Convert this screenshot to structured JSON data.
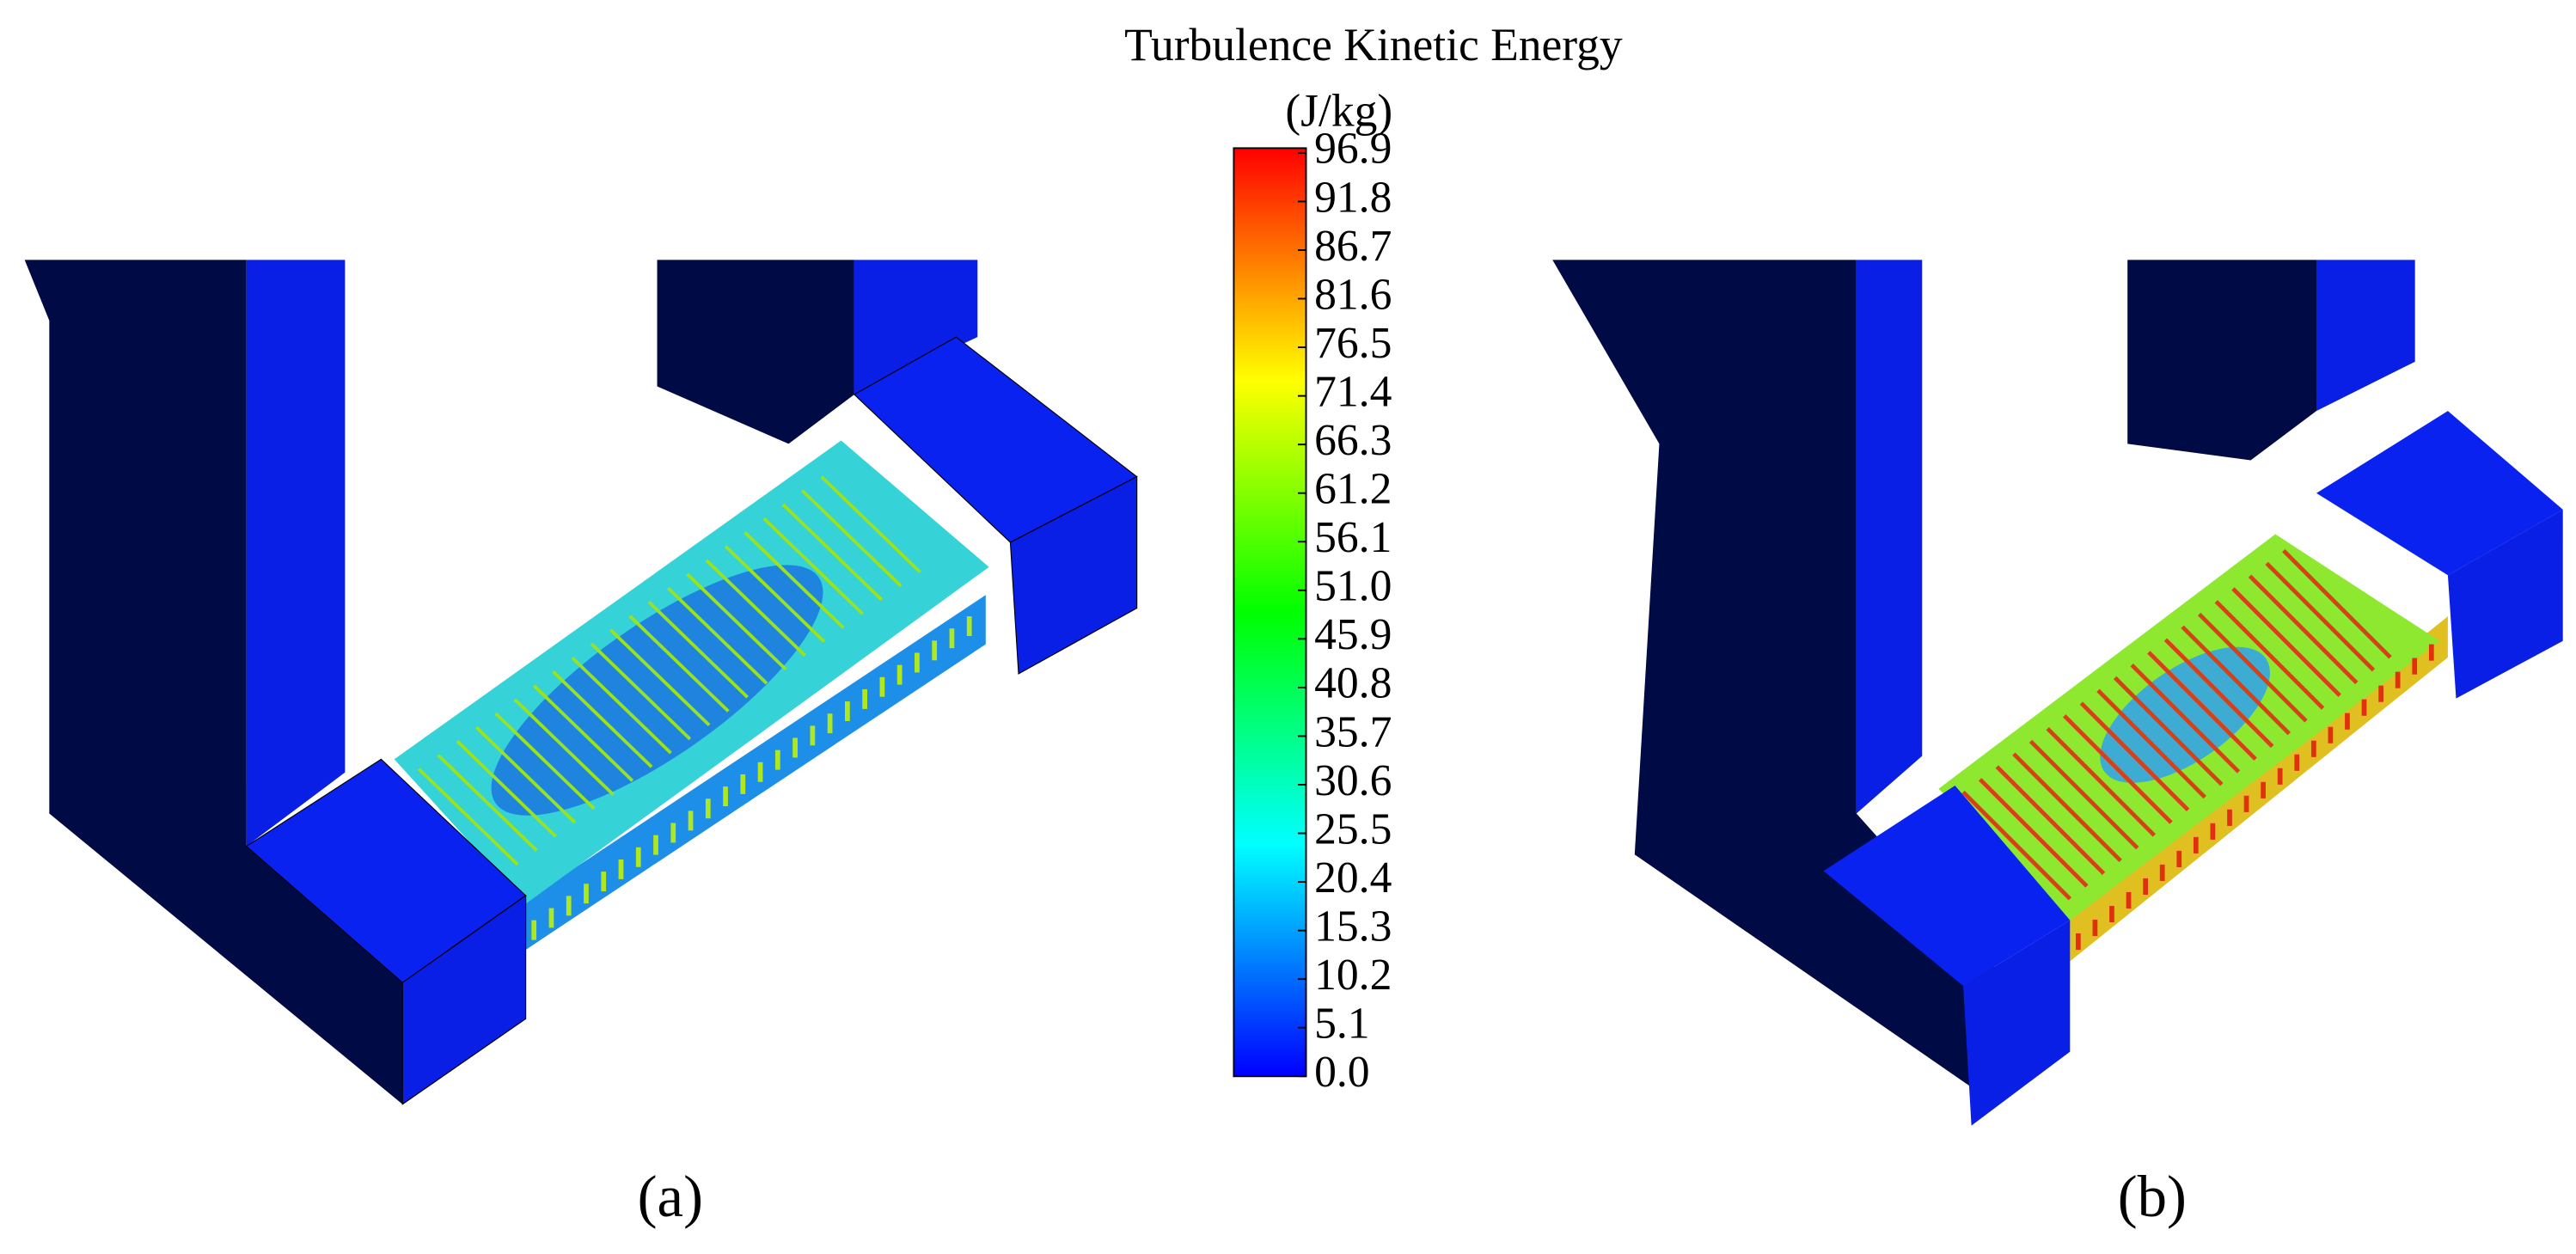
{
  "chart_data": {
    "type": "colorbar",
    "title": "Turbulence Kinetic Energy",
    "unit": "(J/kg)",
    "colors": [
      "#0000ff",
      "#0080ff",
      "#00ffff",
      "#00ff80",
      "#00ff00",
      "#80ff00",
      "#ffff00",
      "#ff8000",
      "#ff0000"
    ],
    "ylim": [
      0,
      97.4
    ],
    "yticks": [
      {
        "value": 0,
        "label": "0.0"
      },
      5.1,
      10.2,
      15.3,
      20.4,
      25.5,
      30.6,
      35.7,
      40.8,
      45.9,
      {
        "value": 51,
        "label": "51.0"
      },
      56.1,
      61.2,
      66.3,
      71.4,
      76.5,
      81.6,
      86.7,
      91.8,
      96.9
    ],
    "panels": [
      "(a)",
      "(b)"
    ]
  }
}
